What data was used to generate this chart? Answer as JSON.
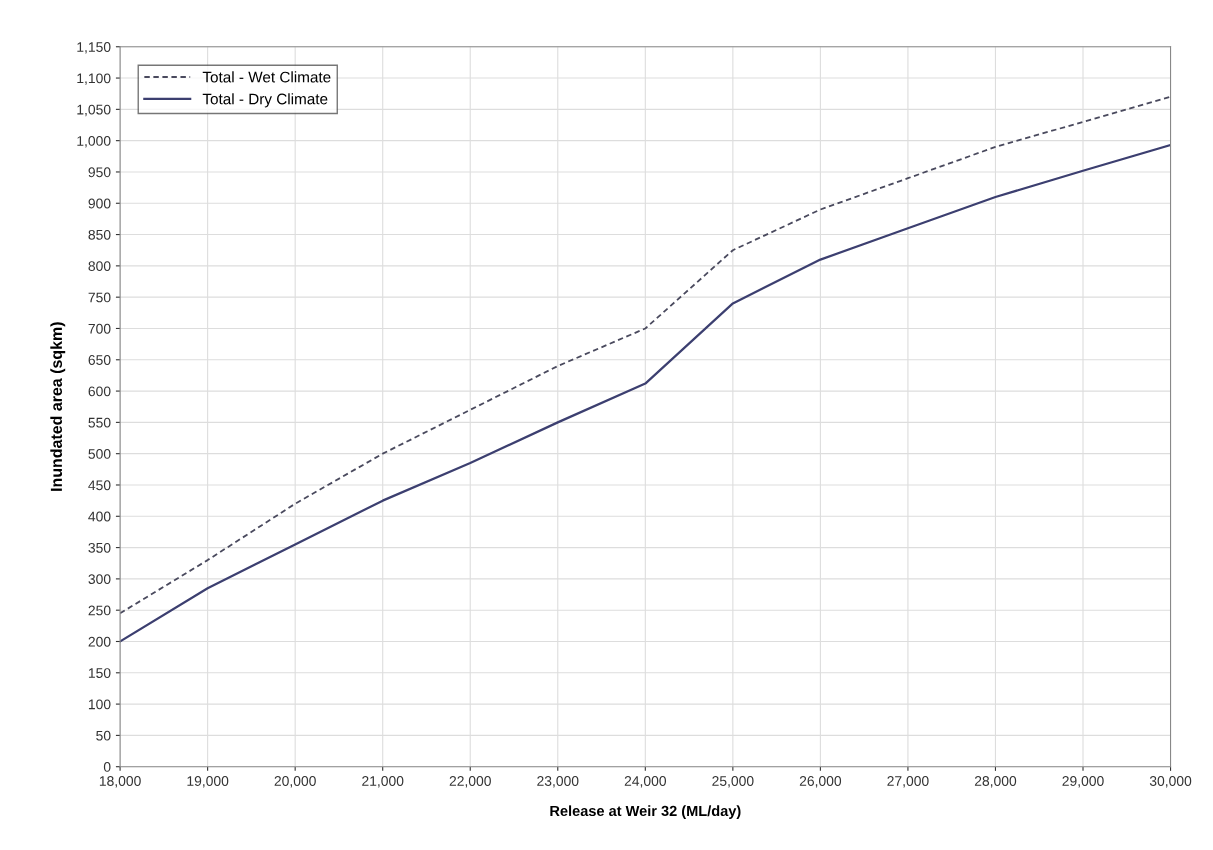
{
  "chart_data": {
    "type": "line",
    "xlabel": "Release at Weir 32 (ML/day)",
    "ylabel": "Inundated area (sqkm)",
    "x": [
      18000,
      19000,
      20000,
      21000,
      22000,
      23000,
      24000,
      25000,
      26000,
      27000,
      28000,
      29000,
      30000
    ],
    "series": [
      {
        "name": "Total - Wet Climate",
        "color": "#4a4a5e",
        "line_style": "dashed",
        "values": [
          245,
          330,
          420,
          500,
          570,
          640,
          700,
          825,
          890,
          940,
          990,
          1030,
          1070
        ]
      },
      {
        "name": "Total - Dry Climate",
        "color": "#3c3f70",
        "line_style": "solid",
        "values": [
          200,
          285,
          355,
          425,
          485,
          550,
          612,
          740,
          810,
          860,
          910,
          952,
          993
        ]
      }
    ],
    "xlim": [
      18000,
      30000
    ],
    "xticks": [
      {
        "value": 18000,
        "label": "18,000"
      },
      {
        "value": 19000,
        "label": "19,000"
      },
      {
        "value": 20000,
        "label": "20,000"
      },
      {
        "value": 21000,
        "label": "21,000"
      },
      {
        "value": 22000,
        "label": "22,000"
      },
      {
        "value": 23000,
        "label": "23,000"
      },
      {
        "value": 24000,
        "label": "24,000"
      },
      {
        "value": 25000,
        "label": "25,000"
      },
      {
        "value": 26000,
        "label": "26,000"
      },
      {
        "value": 27000,
        "label": "27,000"
      },
      {
        "value": 28000,
        "label": "28,000"
      },
      {
        "value": 29000,
        "label": "29,000"
      },
      {
        "value": 30000,
        "label": "30,000"
      }
    ],
    "ylim": [
      0,
      1150
    ],
    "yticks": [
      0,
      50,
      100,
      150,
      200,
      250,
      300,
      350,
      400,
      450,
      500,
      550,
      600,
      650,
      700,
      750,
      800,
      850,
      900,
      950,
      {
        "value": 1000,
        "label": "1,000"
      },
      {
        "value": 1050,
        "label": "1,050"
      },
      {
        "value": 1100,
        "label": "1,100"
      },
      {
        "value": 1150,
        "label": "1,150"
      }
    ],
    "grid": true,
    "legend": "top left",
    "marker": "none"
  }
}
